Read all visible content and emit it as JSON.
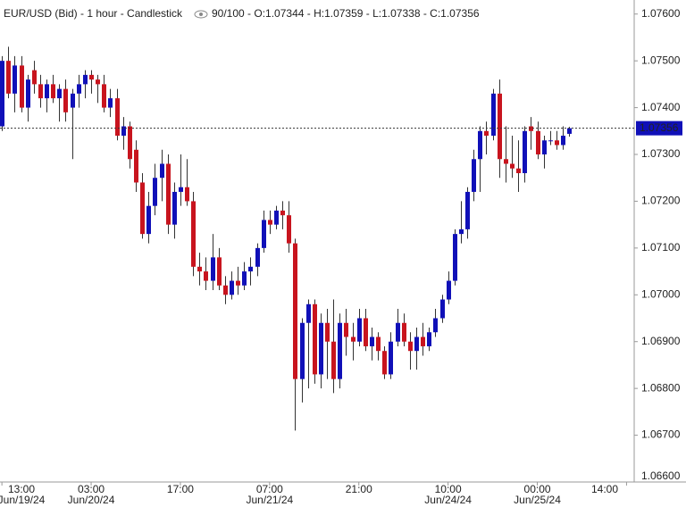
{
  "chart_data": {
    "type": "candlestick",
    "title": "EUR/USD (Bid) - 1 hour - Candlestick",
    "info": "90/100 - O:1.07344 - H:1.07359 - L:1.07338 - C:1.07356",
    "up_color": "#1010b8",
    "down_color": "#c8141e",
    "current_price": {
      "value": 1.07356,
      "label": "1.07356"
    },
    "ylim": [
      1.066,
      1.0763
    ],
    "yticks": [
      {
        "value": 1.066,
        "label": "1.06600"
      },
      {
        "value": 1.067,
        "label": "1.06700"
      },
      {
        "value": 1.068,
        "label": "1.06800"
      },
      {
        "value": 1.069,
        "label": "1.06900"
      },
      {
        "value": 1.07,
        "label": "1.07000"
      },
      {
        "value": 1.071,
        "label": "1.07100"
      },
      {
        "value": 1.072,
        "label": "1.07200"
      },
      {
        "value": 1.073,
        "label": "1.07300"
      },
      {
        "value": 1.074,
        "label": "1.07400"
      },
      {
        "value": 1.075,
        "label": "1.07500"
      },
      {
        "value": 1.076,
        "label": "1.07600"
      }
    ],
    "xlim": [
      -0.3,
      99.2
    ],
    "xticks": [
      {
        "value": 0,
        "label": "13:00",
        "date": "Jun/19/24"
      },
      {
        "value": 14,
        "label": "03:00",
        "date": "Jun/20/24"
      },
      {
        "value": 28,
        "label": "17:00"
      },
      {
        "value": 42,
        "label": "07:00",
        "date": "Jun/21/24"
      },
      {
        "value": 56,
        "label": "21:00"
      },
      {
        "value": 70,
        "label": "10:00",
        "date": "Jun/24/24"
      },
      {
        "value": 84,
        "label": "00:00",
        "date": "Jun/25/24"
      },
      {
        "value": 98,
        "label": "14:00"
      }
    ],
    "ohlc": [
      [
        1.0736,
        1.0751,
        1.0735,
        1.075
      ],
      [
        1.075,
        1.0753,
        1.0742,
        1.0743
      ],
      [
        1.0743,
        1.0751,
        1.0739,
        1.0749
      ],
      [
        1.0749,
        1.0751,
        1.0739,
        1.074
      ],
      [
        1.074,
        1.0747,
        1.0737,
        1.0746
      ],
      [
        1.0748,
        1.075,
        1.0743,
        1.0745
      ],
      [
        1.0745,
        1.0747,
        1.074,
        1.0742
      ],
      [
        1.0742,
        1.0746,
        1.0739,
        1.0745
      ],
      [
        1.0745,
        1.0747,
        1.0741,
        1.0742
      ],
      [
        1.0742,
        1.0745,
        1.0737,
        1.0744
      ],
      [
        1.0744,
        1.0746,
        1.0737,
        1.0739
      ],
      [
        1.074,
        1.0744,
        1.0729,
        1.0743
      ],
      [
        1.0743,
        1.0747,
        1.074,
        1.0745
      ],
      [
        1.0745,
        1.0748,
        1.0742,
        1.0747
      ],
      [
        1.0747,
        1.0748,
        1.0743,
        1.0746
      ],
      [
        1.0746,
        1.0747,
        1.0741,
        1.0745
      ],
      [
        1.0745,
        1.0747,
        1.0739,
        1.074
      ],
      [
        1.074,
        1.0744,
        1.0738,
        1.0742
      ],
      [
        1.0742,
        1.0744,
        1.0733,
        1.0734
      ],
      [
        1.0734,
        1.0738,
        1.0731,
        1.0736
      ],
      [
        1.0736,
        1.0737,
        1.0727,
        1.0729
      ],
      [
        1.0731,
        1.0733,
        1.0722,
        1.0724
      ],
      [
        1.0724,
        1.0726,
        1.0712,
        1.0713
      ],
      [
        1.0713,
        1.0722,
        1.0711,
        1.0719
      ],
      [
        1.0719,
        1.0728,
        1.0717,
        1.0725
      ],
      [
        1.0725,
        1.0731,
        1.072,
        1.0728
      ],
      [
        1.0728,
        1.073,
        1.0713,
        1.0715
      ],
      [
        1.0715,
        1.0724,
        1.0712,
        1.0722
      ],
      [
        1.0722,
        1.073,
        1.0719,
        1.0723
      ],
      [
        1.0723,
        1.0729,
        1.0719,
        1.072
      ],
      [
        1.072,
        1.0722,
        1.0704,
        1.0706
      ],
      [
        1.0706,
        1.0709,
        1.0702,
        1.0705
      ],
      [
        1.0705,
        1.0708,
        1.0701,
        1.0703
      ],
      [
        1.0703,
        1.0713,
        1.0701,
        1.0708
      ],
      [
        1.0708,
        1.071,
        1.0701,
        1.0702
      ],
      [
        1.0702,
        1.0704,
        1.0698,
        1.07
      ],
      [
        1.07,
        1.0705,
        1.0699,
        1.0703
      ],
      [
        1.0703,
        1.0706,
        1.07,
        1.0702
      ],
      [
        1.0702,
        1.0707,
        1.0701,
        1.0705
      ],
      [
        1.0705,
        1.0708,
        1.0702,
        1.0706
      ],
      [
        1.0706,
        1.0711,
        1.0704,
        1.071
      ],
      [
        1.071,
        1.0718,
        1.0709,
        1.0716
      ],
      [
        1.0716,
        1.0718,
        1.0713,
        1.0715
      ],
      [
        1.0715,
        1.0719,
        1.0714,
        1.0718
      ],
      [
        1.0718,
        1.072,
        1.0714,
        1.0717
      ],
      [
        1.0717,
        1.072,
        1.0709,
        1.0711
      ],
      [
        1.0711,
        1.0712,
        1.0671,
        1.0682
      ],
      [
        1.0682,
        1.0695,
        1.0677,
        1.0694
      ],
      [
        1.0694,
        1.0699,
        1.068,
        1.0698
      ],
      [
        1.0698,
        1.0699,
        1.0681,
        1.0683
      ],
      [
        1.0683,
        1.0696,
        1.068,
        1.0694
      ],
      [
        1.0694,
        1.0697,
        1.0682,
        1.069
      ],
      [
        1.069,
        1.0699,
        1.0679,
        1.0682
      ],
      [
        1.0682,
        1.0696,
        1.068,
        1.0694
      ],
      [
        1.0694,
        1.0697,
        1.0687,
        1.0691
      ],
      [
        1.0691,
        1.0694,
        1.0686,
        1.069
      ],
      [
        1.069,
        1.0697,
        1.0689,
        1.0695
      ],
      [
        1.0695,
        1.0697,
        1.0688,
        1.0689
      ],
      [
        1.0689,
        1.0693,
        1.0686,
        1.0691
      ],
      [
        1.0691,
        1.0692,
        1.0686,
        1.0688
      ],
      [
        1.0688,
        1.0689,
        1.0682,
        1.0683
      ],
      [
        1.0683,
        1.0692,
        1.0682,
        1.069
      ],
      [
        1.069,
        1.0697,
        1.0689,
        1.0694
      ],
      [
        1.0694,
        1.0696,
        1.0689,
        1.069
      ],
      [
        1.069,
        1.0692,
        1.0684,
        1.0688
      ],
      [
        1.0688,
        1.0693,
        1.0684,
        1.0691
      ],
      [
        1.0691,
        1.0694,
        1.0687,
        1.0689
      ],
      [
        1.0689,
        1.0693,
        1.0688,
        1.0692
      ],
      [
        1.0692,
        1.0697,
        1.0691,
        1.0695
      ],
      [
        1.0695,
        1.07,
        1.0694,
        1.0699
      ],
      [
        1.0699,
        1.0705,
        1.0698,
        1.0703
      ],
      [
        1.0703,
        1.0714,
        1.0702,
        1.0713
      ],
      [
        1.0713,
        1.072,
        1.0711,
        1.0714
      ],
      [
        1.0714,
        1.0723,
        1.0712,
        1.0722
      ],
      [
        1.0722,
        1.0731,
        1.072,
        1.0729
      ],
      [
        1.0729,
        1.0736,
        1.0722,
        1.0735
      ],
      [
        1.0735,
        1.0737,
        1.073,
        1.0734
      ],
      [
        1.0734,
        1.0744,
        1.0733,
        1.0743
      ],
      [
        1.0743,
        1.0746,
        1.0725,
        1.0729
      ],
      [
        1.0729,
        1.0736,
        1.0724,
        1.0728
      ],
      [
        1.0728,
        1.0734,
        1.0725,
        1.0727
      ],
      [
        1.0727,
        1.0733,
        1.0722,
        1.0726
      ],
      [
        1.0726,
        1.0736,
        1.0724,
        1.0735
      ],
      [
        1.0736,
        1.0738,
        1.0731,
        1.0735
      ],
      [
        1.0735,
        1.0737,
        1.0729,
        1.073
      ],
      [
        1.073,
        1.0734,
        1.0727,
        1.0733
      ],
      [
        1.0733,
        1.0735,
        1.0732,
        1.0733
      ],
      [
        1.0733,
        1.0735,
        1.0731,
        1.0732
      ],
      [
        1.0732,
        1.0736,
        1.0731,
        1.0734
      ],
      [
        1.07344,
        1.07359,
        1.07338,
        1.07356
      ]
    ]
  }
}
